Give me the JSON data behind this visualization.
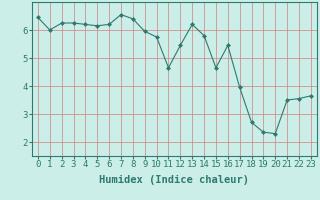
{
  "x": [
    0,
    1,
    2,
    3,
    4,
    5,
    6,
    7,
    8,
    9,
    10,
    11,
    12,
    13,
    14,
    15,
    16,
    17,
    18,
    19,
    20,
    21,
    22,
    23
  ],
  "y": [
    6.45,
    6.0,
    6.25,
    6.25,
    6.2,
    6.15,
    6.2,
    6.55,
    6.4,
    5.95,
    5.75,
    4.65,
    5.45,
    6.2,
    5.8,
    4.65,
    5.45,
    3.95,
    2.7,
    2.35,
    2.3,
    3.5,
    3.55,
    3.65
  ],
  "line_color": "#2d7a6e",
  "marker": "D",
  "marker_size": 2,
  "bg_color": "#cceee8",
  "grid_color": "#d08080",
  "xlabel": "Humidex (Indice chaleur)",
  "xlim": [
    -0.5,
    23.5
  ],
  "ylim": [
    1.5,
    7.0
  ],
  "xtick_labels": [
    "0",
    "1",
    "2",
    "3",
    "4",
    "5",
    "6",
    "7",
    "8",
    "9",
    "10",
    "11",
    "12",
    "13",
    "14",
    "15",
    "16",
    "17",
    "18",
    "19",
    "20",
    "21",
    "22",
    "23"
  ],
  "yticks": [
    2,
    3,
    4,
    5,
    6
  ],
  "xlabel_fontsize": 7.5,
  "tick_fontsize": 6.5
}
